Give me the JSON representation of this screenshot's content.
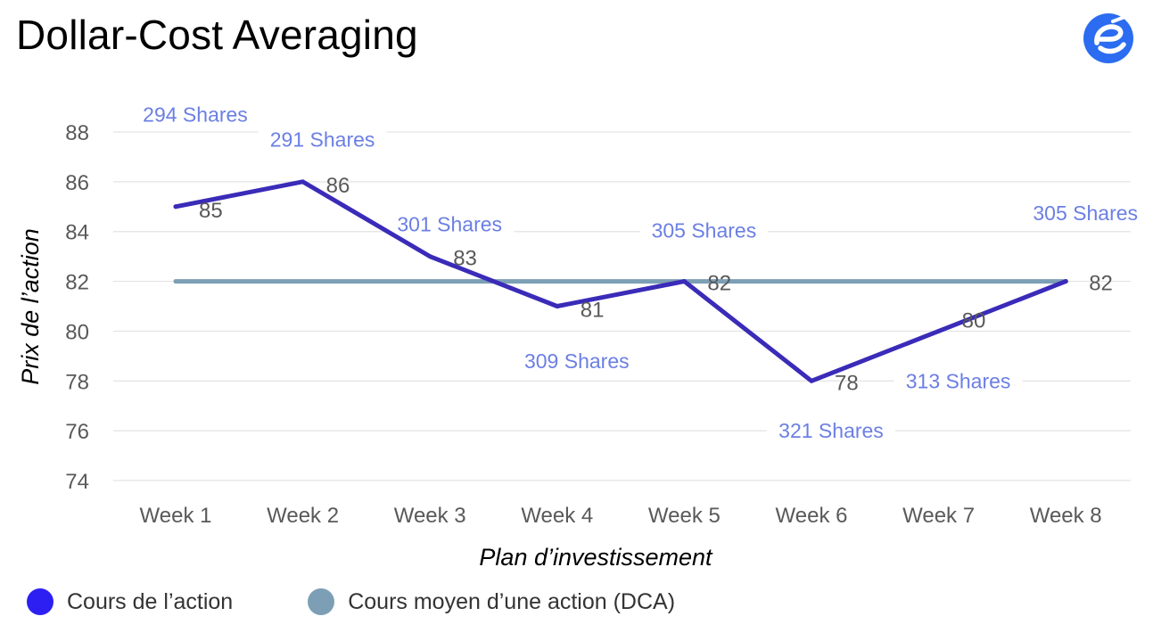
{
  "header": {
    "title": "Dollar-Cost Averaging",
    "logo_icon": "e-logo-icon"
  },
  "chart_data": {
    "type": "line",
    "title": "Dollar-Cost Averaging",
    "xlabel": "Plan d’investissement",
    "ylabel": "Prix de l’action",
    "ylim": [
      74,
      88
    ],
    "y_ticks": [
      74,
      76,
      78,
      80,
      82,
      84,
      86,
      88
    ],
    "grid": true,
    "legend_position": "bottom-left",
    "categories": [
      "Week 1",
      "Week 2",
      "Week 3",
      "Week 4",
      "Week 5",
      "Week 6",
      "Week 7",
      "Week 8"
    ],
    "series": [
      {
        "name": "Cours de l’action",
        "color": "#3a2bb8",
        "legend_color": "#2d1ff2",
        "values": [
          85,
          86,
          83,
          81,
          82,
          78,
          80,
          82
        ],
        "value_labels": [
          "85",
          "86",
          "83",
          "81",
          "82",
          "78",
          "80",
          "82"
        ]
      },
      {
        "name": "Cours moyen d’une action (DCA)",
        "color": "#7c9fb5",
        "legend_color": "#7c9fb5",
        "values": [
          82,
          82,
          82,
          82,
          82,
          82,
          82,
          82
        ]
      }
    ],
    "annotations": [
      {
        "text": "294 Shares",
        "category": "Week 1",
        "y": 88.7
      },
      {
        "text": "291 Shares",
        "category": "Week 2",
        "y": 87.7
      },
      {
        "text": "301 Shares",
        "category": "Week 3",
        "y": 84.3
      },
      {
        "text": "309 Shares",
        "category": "Week 4",
        "y": 78.8
      },
      {
        "text": "305 Shares",
        "category": "Week 5",
        "y": 84.05
      },
      {
        "text": "321 Shares",
        "category": "Week 6",
        "y": 76.0
      },
      {
        "text": "313 Shares",
        "category": "Week 7",
        "y": 78.0
      },
      {
        "text": "305 Shares",
        "category": "Week 8",
        "y": 84.75
      }
    ],
    "annotation_color": "#6b7fe3"
  }
}
